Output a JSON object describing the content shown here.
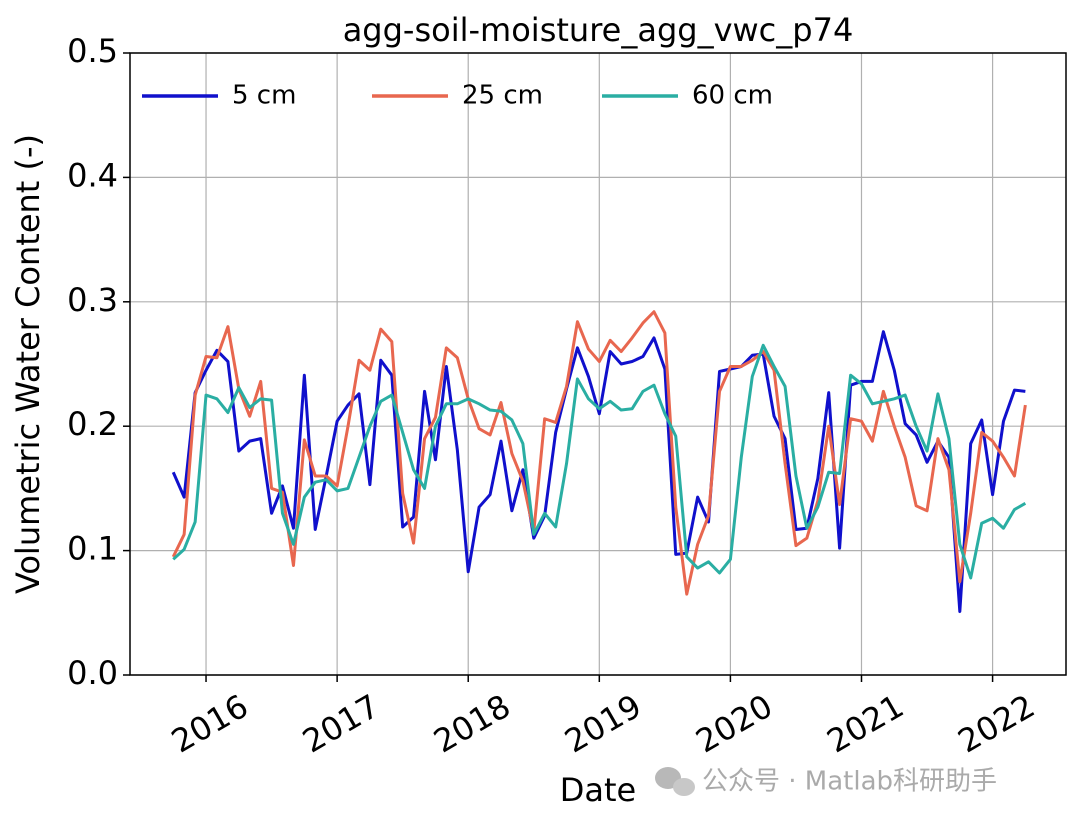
{
  "chart_data": {
    "type": "line",
    "title": "agg-soil-moisture_agg_vwc_p74",
    "x_label": "Date",
    "y_label": "Volumetric Water Content (-)",
    "x": [
      2015.75,
      2015.833,
      2015.917,
      2016,
      2016.083,
      2016.167,
      2016.25,
      2016.333,
      2016.417,
      2016.5,
      2016.583,
      2016.667,
      2016.75,
      2016.833,
      2016.917,
      2017,
      2017.083,
      2017.167,
      2017.25,
      2017.333,
      2017.417,
      2017.5,
      2017.583,
      2017.667,
      2017.75,
      2017.833,
      2017.917,
      2018,
      2018.083,
      2018.167,
      2018.25,
      2018.333,
      2018.417,
      2018.5,
      2018.583,
      2018.667,
      2018.75,
      2018.833,
      2018.917,
      2019,
      2019.083,
      2019.167,
      2019.25,
      2019.333,
      2019.417,
      2019.5,
      2019.583,
      2019.667,
      2019.75,
      2019.833,
      2019.917,
      2020,
      2020.083,
      2020.167,
      2020.25,
      2020.333,
      2020.417,
      2020.5,
      2020.583,
      2020.667,
      2020.75,
      2020.833,
      2020.917,
      2021,
      2021.083,
      2021.167,
      2021.25,
      2021.333,
      2021.417,
      2021.5,
      2021.583,
      2021.667,
      2021.75,
      2021.833,
      2021.917,
      2022,
      2022.083,
      2022.167,
      2022.25
    ],
    "series": [
      {
        "name": "5 cm",
        "color": "#1010cc",
        "values": [
          0.163,
          0.143,
          0.227,
          0.245,
          0.261,
          0.252,
          0.18,
          0.188,
          0.19,
          0.13,
          0.152,
          0.118,
          0.241,
          0.117,
          0.16,
          0.204,
          0.217,
          0.226,
          0.153,
          0.253,
          0.241,
          0.119,
          0.127,
          0.228,
          0.173,
          0.248,
          0.181,
          0.083,
          0.135,
          0.145,
          0.188,
          0.132,
          0.165,
          0.11,
          0.128,
          0.195,
          0.23,
          0.263,
          0.24,
          0.21,
          0.26,
          0.25,
          0.252,
          0.256,
          0.271,
          0.246,
          0.097,
          0.098,
          0.143,
          0.123,
          0.244,
          0.246,
          0.248,
          0.257,
          0.258,
          0.208,
          0.19,
          0.117,
          0.118,
          0.158,
          0.227,
          0.102,
          0.233,
          0.236,
          0.236,
          0.276,
          0.245,
          0.202,
          0.193,
          0.171,
          0.188,
          0.175,
          0.051,
          0.186,
          0.205,
          0.145,
          0.204,
          0.229,
          0.228
        ]
      },
      {
        "name": "25 cm",
        "color": "#e8674f",
        "values": [
          0.095,
          0.113,
          0.225,
          0.256,
          0.255,
          0.28,
          0.23,
          0.208,
          0.236,
          0.15,
          0.147,
          0.088,
          0.189,
          0.16,
          0.16,
          0.152,
          0.2,
          0.253,
          0.245,
          0.278,
          0.268,
          0.146,
          0.106,
          0.19,
          0.207,
          0.263,
          0.255,
          0.222,
          0.198,
          0.193,
          0.219,
          0.178,
          0.156,
          0.115,
          0.206,
          0.203,
          0.232,
          0.284,
          0.262,
          0.252,
          0.269,
          0.26,
          0.271,
          0.283,
          0.292,
          0.275,
          0.135,
          0.065,
          0.105,
          0.128,
          0.228,
          0.248,
          0.248,
          0.253,
          0.26,
          0.245,
          0.17,
          0.104,
          0.11,
          0.14,
          0.2,
          0.137,
          0.206,
          0.204,
          0.188,
          0.228,
          0.2,
          0.175,
          0.136,
          0.132,
          0.19,
          0.165,
          0.075,
          0.13,
          0.195,
          0.188,
          0.175,
          0.16,
          0.217
        ]
      },
      {
        "name": "60 cm",
        "color": "#2aaea3",
        "values": [
          0.093,
          0.101,
          0.123,
          0.225,
          0.222,
          0.211,
          0.231,
          0.215,
          0.222,
          0.221,
          0.13,
          0.105,
          0.143,
          0.155,
          0.157,
          0.148,
          0.15,
          0.175,
          0.2,
          0.22,
          0.225,
          0.195,
          0.165,
          0.15,
          0.2,
          0.218,
          0.218,
          0.222,
          0.218,
          0.213,
          0.212,
          0.205,
          0.186,
          0.113,
          0.13,
          0.119,
          0.17,
          0.238,
          0.222,
          0.214,
          0.22,
          0.213,
          0.214,
          0.228,
          0.233,
          0.21,
          0.192,
          0.095,
          0.086,
          0.091,
          0.082,
          0.093,
          0.175,
          0.24,
          0.265,
          0.248,
          0.232,
          0.16,
          0.118,
          0.135,
          0.163,
          0.162,
          0.241,
          0.234,
          0.218,
          0.22,
          0.222,
          0.225,
          0.2,
          0.18,
          0.226,
          0.19,
          0.105,
          0.078,
          0.122,
          0.126,
          0.118,
          0.133,
          0.138
        ]
      }
    ],
    "xlim": [
      2015.42,
      2022.56
    ],
    "xticks": [
      2016,
      2017,
      2018,
      2019,
      2020,
      2021,
      2022
    ],
    "ylim": [
      0,
      0.5
    ],
    "yticks": [
      {
        "value": 0,
        "label": "0.0"
      },
      {
        "value": 0.1,
        "label": "0.1"
      },
      {
        "value": 0.2,
        "label": "0.2"
      },
      {
        "value": 0.3,
        "label": "0.3"
      },
      {
        "value": 0.4,
        "label": "0.4"
      },
      {
        "value": 0.5,
        "label": "0.5"
      }
    ],
    "grid": true,
    "legend": "upper-left"
  },
  "watermark": "公众号 · Matlab科研助手"
}
